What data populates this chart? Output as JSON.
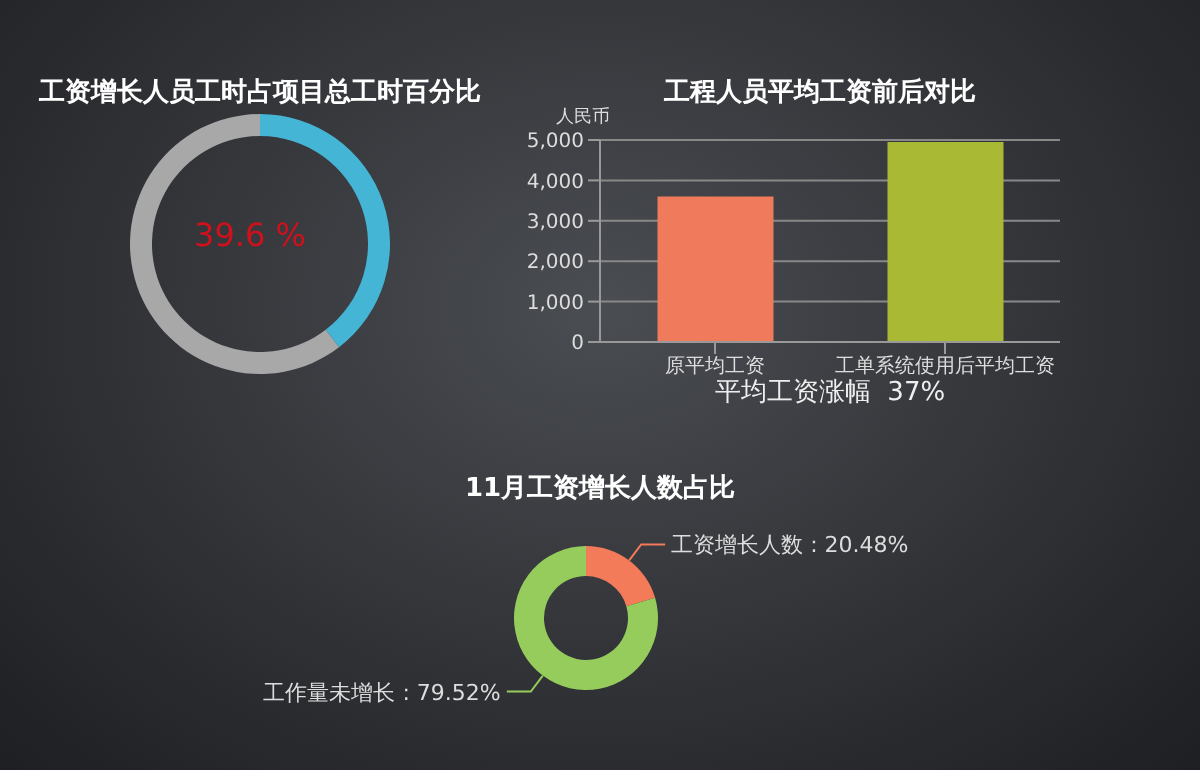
{
  "chart_data": [
    {
      "type": "donut",
      "title": "工资增长人员工时占项目总工时百分比",
      "categories": [
        null,
        null
      ],
      "values": [
        39.6,
        60.4
      ],
      "colors": [
        "#45b5d5",
        "#a8a8a8"
      ],
      "annotations": [
        "39.6 %"
      ]
    },
    {
      "type": "bar",
      "title": "工程人员平均工资前后对比",
      "ylabel": "人民币",
      "categories": [
        "原平均工资",
        "工单系统使用后平均工资"
      ],
      "values": [
        3600,
        4950
      ],
      "colors": [
        "#f07a5c",
        "#a9b934"
      ],
      "ylim": [
        0,
        5000
      ],
      "yticks": [
        0,
        {
          "value": 1000,
          "label": "1,000"
        },
        {
          "value": 2000,
          "label": "2,000"
        },
        {
          "value": 3000,
          "label": "3,000"
        },
        {
          "value": 4000,
          "label": "4,000"
        },
        {
          "value": 5000,
          "label": "5,000"
        }
      ],
      "grid": "y",
      "annotations": [
        "平均工资涨幅  37%"
      ]
    },
    {
      "type": "donut",
      "title": "11月工资增长人数占比",
      "categories": [
        "工资增长人数",
        "工作量未增长"
      ],
      "values": [
        20.48,
        79.52
      ],
      "colors": [
        "#f47b5a",
        "#95cc5c"
      ],
      "value_labels": [
        "20.48%",
        "79.52%"
      ]
    }
  ]
}
